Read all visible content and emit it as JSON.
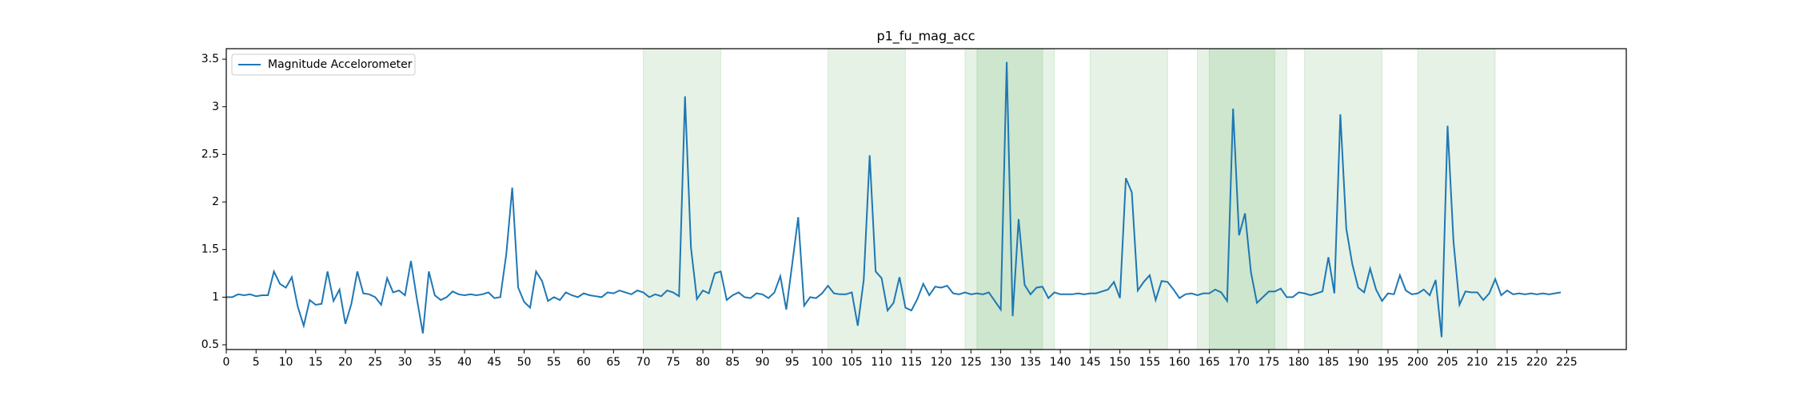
{
  "chart_data": {
    "type": "line",
    "title": "p1_fu_mag_acc",
    "series": [
      {
        "name": "Magnitude Accelorometer",
        "color": "#1f77b4",
        "values": [
          1.0,
          1.0,
          1.03,
          1.02,
          1.03,
          1.01,
          1.02,
          1.02,
          1.27,
          1.14,
          1.1,
          1.21,
          0.9,
          0.7,
          0.97,
          0.92,
          0.93,
          1.27,
          0.96,
          1.08,
          0.72,
          0.93,
          1.27,
          1.04,
          1.03,
          1.0,
          0.92,
          1.2,
          1.05,
          1.07,
          1.02,
          1.38,
          0.98,
          0.62,
          1.27,
          1.02,
          0.97,
          1.0,
          1.06,
          1.03,
          1.02,
          1.03,
          1.02,
          1.03,
          1.05,
          0.99,
          1.0,
          1.45,
          2.15,
          1.1,
          0.95,
          0.89,
          1.27,
          1.17,
          0.96,
          1.0,
          0.97,
          1.05,
          1.02,
          1.0,
          1.04,
          1.02,
          1.01,
          1.0,
          1.05,
          1.04,
          1.07,
          1.05,
          1.03,
          1.07,
          1.05,
          1.0,
          1.03,
          1.01,
          1.07,
          1.05,
          1.01,
          3.11,
          1.52,
          0.98,
          1.07,
          1.04,
          1.25,
          1.27,
          0.97,
          1.02,
          1.05,
          1.0,
          0.99,
          1.04,
          1.03,
          0.99,
          1.05,
          1.22,
          0.87,
          1.35,
          1.84,
          0.91,
          1.0,
          0.99,
          1.04,
          1.12,
          1.04,
          1.03,
          1.03,
          1.05,
          0.7,
          1.18,
          2.49,
          1.27,
          1.2,
          0.86,
          0.94,
          1.21,
          0.89,
          0.86,
          0.98,
          1.14,
          1.02,
          1.11,
          1.1,
          1.12,
          1.04,
          1.03,
          1.05,
          1.03,
          1.04,
          1.03,
          1.05,
          0.96,
          0.87,
          3.47,
          0.8,
          1.82,
          1.13,
          1.03,
          1.1,
          1.11,
          0.99,
          1.05,
          1.03,
          1.03,
          1.03,
          1.04,
          1.03,
          1.04,
          1.04,
          1.06,
          1.08,
          1.16,
          0.99,
          2.25,
          2.1,
          1.07,
          1.16,
          1.23,
          0.97,
          1.17,
          1.16,
          1.08,
          0.99,
          1.03,
          1.04,
          1.02,
          1.04,
          1.04,
          1.08,
          1.05,
          0.96,
          2.98,
          1.65,
          1.88,
          1.26,
          0.94,
          1.0,
          1.06,
          1.06,
          1.09,
          1.0,
          1.0,
          1.05,
          1.04,
          1.02,
          1.04,
          1.06,
          1.42,
          1.04,
          2.92,
          1.72,
          1.35,
          1.1,
          1.05,
          1.3,
          1.08,
          0.96,
          1.04,
          1.03,
          1.23,
          1.07,
          1.03,
          1.04,
          1.08,
          1.02,
          1.18,
          0.58,
          2.8,
          1.58,
          0.92,
          1.06,
          1.05,
          1.05,
          0.97,
          1.04,
          1.19,
          1.02,
          1.07,
          1.03,
          1.04,
          1.03,
          1.04,
          1.03,
          1.04,
          1.03,
          1.04,
          1.05
        ]
      }
    ],
    "spans": [
      {
        "start": 70,
        "end": 83
      },
      {
        "start": 101,
        "end": 114
      },
      {
        "start": 124,
        "end": 139
      },
      {
        "start": 126,
        "end": 137
      },
      {
        "start": 145,
        "end": 158
      },
      {
        "start": 163,
        "end": 178
      },
      {
        "start": 165,
        "end": 176
      },
      {
        "start": 181,
        "end": 194
      },
      {
        "start": 200,
        "end": 213
      }
    ],
    "span_color": "green",
    "xlim": [
      0,
      235
    ],
    "xticks": [
      0,
      5,
      10,
      15,
      20,
      25,
      30,
      35,
      40,
      45,
      50,
      55,
      60,
      65,
      70,
      75,
      80,
      85,
      90,
      95,
      100,
      105,
      110,
      115,
      120,
      125,
      130,
      135,
      140,
      145,
      150,
      155,
      160,
      165,
      170,
      175,
      180,
      185,
      190,
      195,
      200,
      205,
      210,
      215,
      220,
      225
    ],
    "ylim": [
      0.45,
      3.61
    ],
    "yticks": [
      0.5,
      1.0,
      1.5,
      2.0,
      2.5,
      3.0,
      3.5
    ],
    "legend": "upper left"
  }
}
